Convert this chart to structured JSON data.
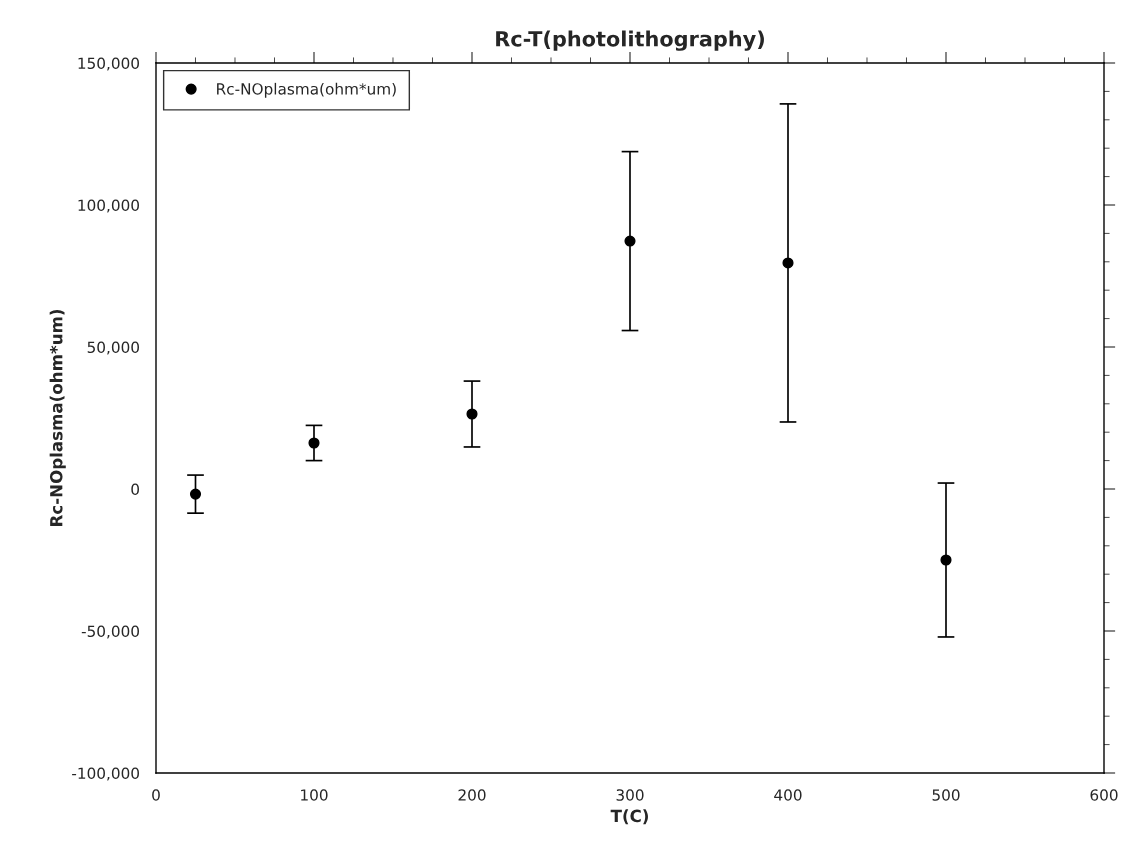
{
  "chart_data": {
    "type": "scatter",
    "title": "Rc-T(photolithography)",
    "xlabel": "T(C)",
    "ylabel": "Rc-NOplasma(ohm*um)",
    "x": [
      25,
      100,
      200,
      300,
      400,
      500
    ],
    "series": [
      {
        "name": "Rc-NOplasma(ohm*um)",
        "color": "#000000",
        "values": [
          -1800,
          16200,
          26400,
          87300,
          79600,
          -25000
        ],
        "errors": [
          6700,
          6200,
          11600,
          31500,
          56000,
          27100
        ]
      }
    ],
    "xlim": [
      0,
      600
    ],
    "xticks": [
      0,
      100,
      200,
      300,
      400,
      500,
      600
    ],
    "ylim": [
      -100000,
      150000
    ],
    "yticks": [
      {
        "value": -100000,
        "label": "-100,000"
      },
      {
        "value": -50000,
        "label": "-50,000"
      },
      {
        "value": 0,
        "label": "0"
      },
      {
        "value": 50000,
        "label": "50,000"
      },
      {
        "value": 100000,
        "label": "100,000"
      },
      {
        "value": 150000,
        "label": "150,000"
      }
    ],
    "marker": "circle",
    "legend": "top left",
    "grid": false
  }
}
